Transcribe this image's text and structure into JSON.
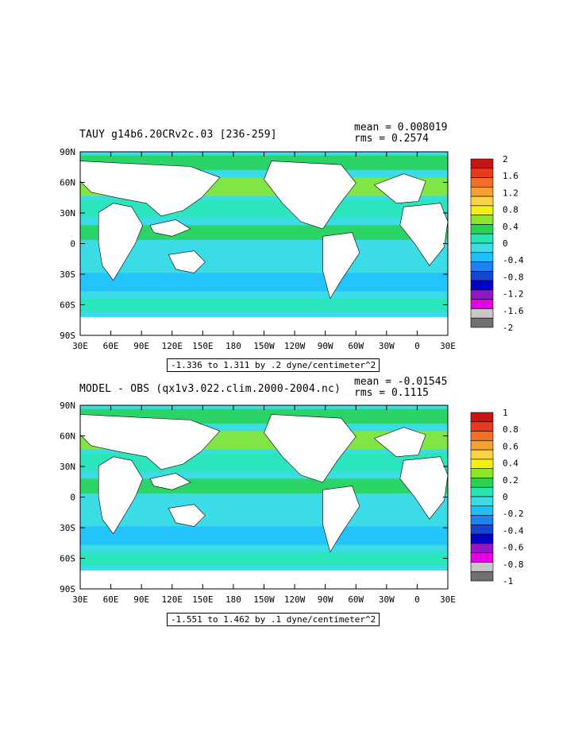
{
  "chart_data": [
    {
      "type": "heatmap",
      "title": "TAUY g14b6.20CRv2c.03 [236-259]",
      "mean_label": "mean = 0.008019",
      "rms_label": "rms = 0.2574",
      "range_label": "-1.336 to 1.311 by .2 dyne/centimeter^2",
      "x_ticks": [
        "30E",
        "60E",
        "90E",
        "120E",
        "150E",
        "180",
        "150W",
        "120W",
        "90W",
        "60W",
        "30W",
        "0",
        "30E"
      ],
      "y_ticks": [
        "90N",
        "60N",
        "30N",
        "0",
        "30S",
        "60S",
        "90S"
      ],
      "colorbar": {
        "labels": [
          "2",
          "1.6",
          "1.2",
          "0.8",
          "0.4",
          "0",
          "-0.4",
          "-0.8",
          "-1.2",
          "-1.6",
          "-2"
        ],
        "colors": [
          "#c81414",
          "#e63c1e",
          "#f06e28",
          "#f5a032",
          "#fad246",
          "#f0f014",
          "#8ce628",
          "#28d250",
          "#28e6b4",
          "#3cdce6",
          "#1ebeff",
          "#1e82f0",
          "#1446d2",
          "#0000c8",
          "#9614c8",
          "#e600e6",
          "#c8c8c8",
          "#707070"
        ]
      }
    },
    {
      "type": "heatmap",
      "title": "MODEL - OBS (qx1v3.022.clim.2000-2004.nc)",
      "mean_label": "mean = -0.01545",
      "rms_label": "rms = 0.1115",
      "range_label": "-1.551 to 1.462 by .1 dyne/centimeter^2",
      "x_ticks": [
        "30E",
        "60E",
        "90E",
        "120E",
        "150E",
        "180",
        "150W",
        "120W",
        "90W",
        "60W",
        "30W",
        "0",
        "30E"
      ],
      "y_ticks": [
        "90N",
        "60N",
        "30N",
        "0",
        "30S",
        "60S",
        "90S"
      ],
      "colorbar": {
        "labels": [
          "1",
          "0.8",
          "0.6",
          "0.4",
          "0.2",
          "0",
          "-0.2",
          "-0.4",
          "-0.6",
          "-0.8",
          "-1"
        ],
        "colors": [
          "#c81414",
          "#e63c1e",
          "#f06e28",
          "#f5a032",
          "#fad246",
          "#f0f014",
          "#8ce628",
          "#28d250",
          "#28e6b4",
          "#3cdce6",
          "#1ebeff",
          "#1e82f0",
          "#1446d2",
          "#0000c8",
          "#9614c8",
          "#e600e6",
          "#c8c8c8",
          "#707070"
        ]
      }
    }
  ]
}
